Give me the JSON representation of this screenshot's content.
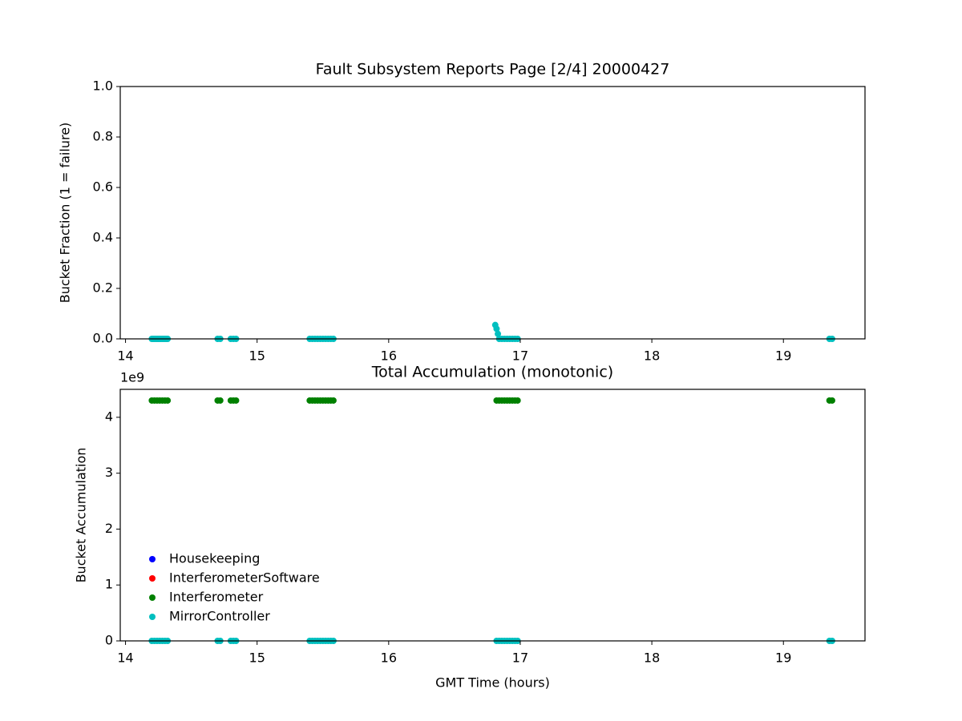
{
  "chart_data": [
    {
      "type": "scatter",
      "title": "Fault Subsystem Reports Page [2/4] 20000427",
      "ylabel": "Bucket Fraction (1 = failure)",
      "xlim": [
        13.96,
        19.62
      ],
      "xticks": [
        14,
        15,
        16,
        17,
        18,
        19
      ],
      "ylim": [
        0,
        1
      ],
      "yticks": [
        {
          "value": 0,
          "label": "0.0"
        },
        0.2,
        0.4,
        0.6,
        0.8,
        {
          "value": 1,
          "label": "1.0"
        }
      ],
      "series": [
        {
          "name": "MirrorController",
          "color": "#00bfbf",
          "x": [
            14.2,
            14.21,
            14.22,
            14.23,
            14.24,
            14.25,
            14.26,
            14.27,
            14.28,
            14.29,
            14.3,
            14.31,
            14.32,
            14.7,
            14.72,
            14.8,
            14.82,
            14.84,
            15.4,
            15.42,
            15.44,
            15.46,
            15.48,
            15.5,
            15.52,
            15.54,
            15.56,
            15.58,
            16.81,
            16.82,
            16.83,
            16.84,
            16.86,
            16.88,
            16.9,
            16.92,
            16.94,
            16.96,
            16.98,
            19.35,
            19.37
          ],
          "values": [
            0,
            0,
            0,
            0,
            0,
            0,
            0,
            0,
            0,
            0,
            0,
            0,
            0,
            0,
            0,
            0,
            0,
            0,
            0,
            0,
            0,
            0,
            0,
            0,
            0,
            0,
            0,
            0,
            0.055,
            0.04,
            0.02,
            0,
            0,
            0,
            0,
            0,
            0,
            0,
            0,
            0,
            0
          ]
        }
      ]
    },
    {
      "type": "scatter",
      "title": "Total Accumulation (monotonic)",
      "xlabel": "GMT Time (hours)",
      "ylabel": "Bucket Accumulation",
      "y_offset_label": "1e9",
      "xlim": [
        13.96,
        19.62
      ],
      "xticks": [
        14,
        15,
        16,
        17,
        18,
        19
      ],
      "ylim": [
        0,
        4500000000
      ],
      "yticks": [
        {
          "value": 0,
          "label": "0"
        },
        {
          "value": 1000000000,
          "label": "1"
        },
        {
          "value": 2000000000,
          "label": "2"
        },
        {
          "value": 3000000000,
          "label": "3"
        },
        {
          "value": 4000000000,
          "label": "4"
        }
      ],
      "legend": "lower left",
      "series": [
        {
          "name": "Housekeeping",
          "color": "#0000ff",
          "x": [],
          "values": []
        },
        {
          "name": "InterferometerSoftware",
          "color": "#ff0000",
          "x": [],
          "values": []
        },
        {
          "name": "Interferometer",
          "color": "#008000",
          "x": [
            14.2,
            14.22,
            14.24,
            14.26,
            14.28,
            14.3,
            14.32,
            14.7,
            14.72,
            14.8,
            14.82,
            14.84,
            15.4,
            15.42,
            15.44,
            15.46,
            15.48,
            15.5,
            15.52,
            15.54,
            15.56,
            15.58,
            16.82,
            16.84,
            16.86,
            16.88,
            16.9,
            16.92,
            16.94,
            16.96,
            16.98,
            19.35,
            19.37
          ],
          "values": [
            4300000000,
            4300000000,
            4300000000,
            4300000000,
            4300000000,
            4300000000,
            4300000000,
            4300000000,
            4300000000,
            4300000000,
            4300000000,
            4300000000,
            4300000000,
            4300000000,
            4300000000,
            4300000000,
            4300000000,
            4300000000,
            4300000000,
            4300000000,
            4300000000,
            4300000000,
            4300000000,
            4300000000,
            4300000000,
            4300000000,
            4300000000,
            4300000000,
            4300000000,
            4300000000,
            4300000000,
            4300000000,
            4300000000
          ]
        },
        {
          "name": "MirrorController",
          "color": "#00bfbf",
          "x": [
            14.2,
            14.22,
            14.24,
            14.26,
            14.28,
            14.3,
            14.32,
            14.7,
            14.72,
            14.8,
            14.82,
            14.84,
            15.4,
            15.42,
            15.44,
            15.46,
            15.48,
            15.5,
            15.52,
            15.54,
            15.56,
            15.58,
            16.82,
            16.84,
            16.86,
            16.88,
            16.9,
            16.92,
            16.94,
            16.96,
            16.98,
            19.35,
            19.37
          ],
          "values": [
            0,
            0,
            0,
            0,
            0,
            0,
            0,
            0,
            0,
            0,
            0,
            0,
            0,
            0,
            0,
            0,
            0,
            0,
            0,
            0,
            0,
            0,
            0,
            0,
            0,
            0,
            0,
            0,
            0,
            0,
            0,
            0,
            0
          ]
        }
      ]
    }
  ]
}
